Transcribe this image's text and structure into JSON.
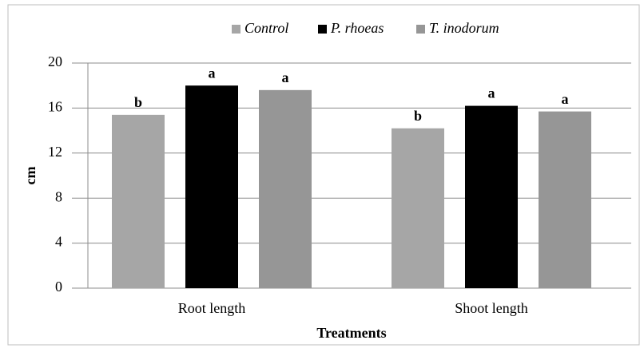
{
  "chart_data": {
    "type": "bar",
    "categories": [
      "Root length",
      "Shoot length"
    ],
    "series": [
      {
        "name": "Control",
        "color": "#a6a6a6",
        "values": [
          15.4,
          14.2
        ],
        "significance": [
          "b",
          "b"
        ]
      },
      {
        "name": "P. rhoeas",
        "color": "#000000",
        "values": [
          18.0,
          16.2
        ],
        "significance": [
          "a",
          "a"
        ]
      },
      {
        "name": "T. inodorum",
        "color": "#969696",
        "values": [
          17.6,
          15.7
        ],
        "significance": [
          "a",
          "a"
        ]
      }
    ],
    "xlabel": "Treatments",
    "ylabel": "cm",
    "ylim": [
      0,
      20
    ],
    "yticks": [
      0,
      4,
      8,
      12,
      16,
      20
    ],
    "grid": true,
    "legend": "top"
  }
}
